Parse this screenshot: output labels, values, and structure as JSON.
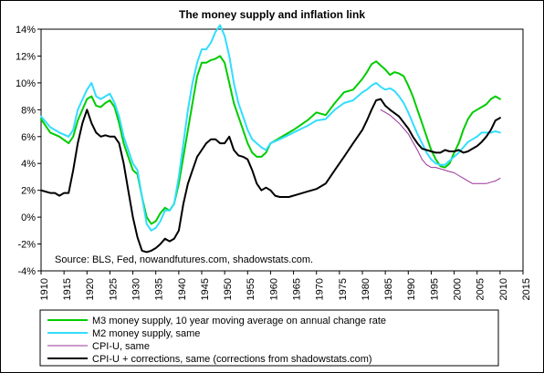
{
  "chart_data": {
    "type": "line",
    "title": "The money supply and inflation link",
    "annotation": "Source: BLS, Fed, nowandfutures.com, shadowstats.com.",
    "xlim": [
      1910,
      2015
    ],
    "ylim": [
      -4,
      14
    ],
    "x_ticks": [
      1910,
      1915,
      1920,
      1925,
      1930,
      1935,
      1940,
      1945,
      1950,
      1955,
      1960,
      1965,
      1970,
      1975,
      1980,
      1985,
      1990,
      1995,
      2000,
      2005,
      2010,
      2015
    ],
    "y_ticks": [
      -4,
      -2,
      0,
      2,
      4,
      6,
      8,
      10,
      12,
      14
    ],
    "y_tick_labels": [
      "-4%",
      "-2%",
      "0%",
      "2%",
      "4%",
      "6%",
      "8%",
      "10%",
      "12%",
      "14%"
    ],
    "grid": false,
    "legend_position": "bottom",
    "series": [
      {
        "name": "M3 money supply, 10 year moving average on annual change rate",
        "color": "#00cc00",
        "points": [
          [
            1910,
            7.3
          ],
          [
            1912,
            6.3
          ],
          [
            1914,
            6.0
          ],
          [
            1916,
            5.5
          ],
          [
            1917,
            6.0
          ],
          [
            1918,
            7.2
          ],
          [
            1920,
            8.8
          ],
          [
            1921,
            9.0
          ],
          [
            1922,
            8.3
          ],
          [
            1923,
            8.2
          ],
          [
            1924,
            8.5
          ],
          [
            1925,
            8.7
          ],
          [
            1926,
            8.2
          ],
          [
            1927,
            7.0
          ],
          [
            1928,
            5.5
          ],
          [
            1929,
            4.5
          ],
          [
            1930,
            3.5
          ],
          [
            1931,
            3.2
          ],
          [
            1932,
            1.5
          ],
          [
            1933,
            0.0
          ],
          [
            1934,
            -0.5
          ],
          [
            1935,
            -0.3
          ],
          [
            1936,
            0.3
          ],
          [
            1937,
            0.7
          ],
          [
            1938,
            0.5
          ],
          [
            1939,
            1.0
          ],
          [
            1940,
            2.5
          ],
          [
            1941,
            4.5
          ],
          [
            1942,
            6.5
          ],
          [
            1943,
            8.5
          ],
          [
            1944,
            10.5
          ],
          [
            1945,
            11.5
          ],
          [
            1946,
            11.5
          ],
          [
            1947,
            11.7
          ],
          [
            1948,
            11.8
          ],
          [
            1949,
            12.0
          ],
          [
            1950,
            11.5
          ],
          [
            1951,
            10.0
          ],
          [
            1952,
            8.5
          ],
          [
            1953,
            7.5
          ],
          [
            1954,
            6.5
          ],
          [
            1955,
            5.5
          ],
          [
            1956,
            4.8
          ],
          [
            1957,
            4.5
          ],
          [
            1958,
            4.5
          ],
          [
            1959,
            4.8
          ],
          [
            1960,
            5.5
          ],
          [
            1962,
            5.9
          ],
          [
            1965,
            6.5
          ],
          [
            1968,
            7.2
          ],
          [
            1970,
            7.8
          ],
          [
            1972,
            7.6
          ],
          [
            1974,
            8.5
          ],
          [
            1976,
            9.3
          ],
          [
            1978,
            9.5
          ],
          [
            1980,
            10.3
          ],
          [
            1981,
            10.8
          ],
          [
            1982,
            11.4
          ],
          [
            1983,
            11.6
          ],
          [
            1984,
            11.3
          ],
          [
            1985,
            11.0
          ],
          [
            1986,
            10.6
          ],
          [
            1987,
            10.8
          ],
          [
            1988,
            10.7
          ],
          [
            1989,
            10.5
          ],
          [
            1990,
            9.8
          ],
          [
            1991,
            9.0
          ],
          [
            1992,
            8.0
          ],
          [
            1993,
            7.0
          ],
          [
            1994,
            6.0
          ],
          [
            1995,
            5.0
          ],
          [
            1996,
            4.3
          ],
          [
            1997,
            3.8
          ],
          [
            1998,
            3.7
          ],
          [
            1999,
            4.0
          ],
          [
            2000,
            4.8
          ],
          [
            2001,
            5.5
          ],
          [
            2002,
            6.5
          ],
          [
            2003,
            7.3
          ],
          [
            2004,
            7.8
          ],
          [
            2005,
            8.0
          ],
          [
            2006,
            8.2
          ],
          [
            2007,
            8.4
          ],
          [
            2008,
            8.8
          ],
          [
            2009,
            9.0
          ],
          [
            2010,
            8.8
          ]
        ]
      },
      {
        "name": "M2 money supply, same",
        "color": "#33ddff",
        "points": [
          [
            1910,
            7.5
          ],
          [
            1912,
            6.7
          ],
          [
            1914,
            6.3
          ],
          [
            1916,
            6.0
          ],
          [
            1917,
            6.5
          ],
          [
            1918,
            8.0
          ],
          [
            1920,
            9.5
          ],
          [
            1921,
            10.0
          ],
          [
            1922,
            9.0
          ],
          [
            1923,
            8.8
          ],
          [
            1924,
            9.0
          ],
          [
            1925,
            9.2
          ],
          [
            1926,
            8.5
          ],
          [
            1927,
            7.5
          ],
          [
            1928,
            6.0
          ],
          [
            1929,
            5.0
          ],
          [
            1930,
            4.0
          ],
          [
            1931,
            3.5
          ],
          [
            1932,
            1.5
          ],
          [
            1933,
            -0.5
          ],
          [
            1934,
            -1.0
          ],
          [
            1935,
            -0.8
          ],
          [
            1936,
            -0.3
          ],
          [
            1937,
            0.5
          ],
          [
            1938,
            0.5
          ],
          [
            1939,
            1.0
          ],
          [
            1940,
            3.0
          ],
          [
            1941,
            5.5
          ],
          [
            1942,
            8.0
          ],
          [
            1943,
            10.0
          ],
          [
            1944,
            11.5
          ],
          [
            1945,
            12.5
          ],
          [
            1946,
            12.5
          ],
          [
            1947,
            13.0
          ],
          [
            1948,
            13.8
          ],
          [
            1949,
            14.3
          ],
          [
            1950,
            13.5
          ],
          [
            1951,
            12.0
          ],
          [
            1952,
            10.0
          ],
          [
            1953,
            8.5
          ],
          [
            1954,
            7.5
          ],
          [
            1955,
            6.5
          ],
          [
            1956,
            5.8
          ],
          [
            1957,
            5.5
          ],
          [
            1958,
            5.2
          ],
          [
            1959,
            5.0
          ],
          [
            1960,
            5.5
          ],
          [
            1962,
            5.8
          ],
          [
            1965,
            6.3
          ],
          [
            1968,
            6.8
          ],
          [
            1970,
            7.2
          ],
          [
            1972,
            7.3
          ],
          [
            1974,
            8.0
          ],
          [
            1976,
            8.5
          ],
          [
            1978,
            8.7
          ],
          [
            1980,
            9.3
          ],
          [
            1981,
            9.5
          ],
          [
            1982,
            9.8
          ],
          [
            1983,
            10.0
          ],
          [
            1984,
            9.7
          ],
          [
            1985,
            9.5
          ],
          [
            1986,
            9.6
          ],
          [
            1987,
            9.4
          ],
          [
            1988,
            9.0
          ],
          [
            1989,
            8.5
          ],
          [
            1990,
            7.8
          ],
          [
            1991,
            7.0
          ],
          [
            1992,
            6.2
          ],
          [
            1993,
            5.5
          ],
          [
            1994,
            4.8
          ],
          [
            1995,
            4.3
          ],
          [
            1996,
            4.0
          ],
          [
            1997,
            3.9
          ],
          [
            1998,
            3.9
          ],
          [
            1999,
            4.2
          ],
          [
            2000,
            4.5
          ],
          [
            2001,
            4.8
          ],
          [
            2002,
            5.2
          ],
          [
            2003,
            5.6
          ],
          [
            2004,
            5.8
          ],
          [
            2005,
            6.0
          ],
          [
            2006,
            6.3
          ],
          [
            2007,
            6.3
          ],
          [
            2008,
            6.3
          ],
          [
            2009,
            6.4
          ],
          [
            2010,
            6.3
          ]
        ]
      },
      {
        "name": "CPI-U, same",
        "color": "#993399",
        "points": [
          [
            1984,
            8.0
          ],
          [
            1986,
            7.6
          ],
          [
            1988,
            7.0
          ],
          [
            1990,
            6.2
          ],
          [
            1991,
            5.6
          ],
          [
            1992,
            5.0
          ],
          [
            1993,
            4.3
          ],
          [
            1994,
            3.9
          ],
          [
            1995,
            3.7
          ],
          [
            1996,
            3.7
          ],
          [
            1997,
            3.6
          ],
          [
            1998,
            3.5
          ],
          [
            1999,
            3.4
          ],
          [
            2000,
            3.3
          ],
          [
            2001,
            3.1
          ],
          [
            2002,
            2.9
          ],
          [
            2003,
            2.7
          ],
          [
            2004,
            2.5
          ],
          [
            2005,
            2.5
          ],
          [
            2006,
            2.5
          ],
          [
            2007,
            2.5
          ],
          [
            2008,
            2.6
          ],
          [
            2009,
            2.7
          ],
          [
            2010,
            2.9
          ]
        ]
      },
      {
        "name": "CPI-U + corrections, same (corrections from shadowstats.com)",
        "color": "#000000",
        "points": [
          [
            1910,
            2.0
          ],
          [
            1911,
            1.9
          ],
          [
            1912,
            1.8
          ],
          [
            1913,
            1.8
          ],
          [
            1914,
            1.6
          ],
          [
            1915,
            1.8
          ],
          [
            1916,
            1.8
          ],
          [
            1917,
            3.5
          ],
          [
            1918,
            5.5
          ],
          [
            1919,
            7.0
          ],
          [
            1920,
            8.0
          ],
          [
            1921,
            7.0
          ],
          [
            1922,
            6.3
          ],
          [
            1923,
            6.0
          ],
          [
            1924,
            6.1
          ],
          [
            1925,
            6.0
          ],
          [
            1926,
            6.0
          ],
          [
            1927,
            5.5
          ],
          [
            1928,
            4.0
          ],
          [
            1929,
            2.0
          ],
          [
            1930,
            0.0
          ],
          [
            1931,
            -1.5
          ],
          [
            1932,
            -2.5
          ],
          [
            1933,
            -2.6
          ],
          [
            1934,
            -2.5
          ],
          [
            1935,
            -2.3
          ],
          [
            1936,
            -2.0
          ],
          [
            1937,
            -1.6
          ],
          [
            1938,
            -1.8
          ],
          [
            1939,
            -1.6
          ],
          [
            1940,
            -1.0
          ],
          [
            1941,
            1.0
          ],
          [
            1942,
            2.5
          ],
          [
            1943,
            3.5
          ],
          [
            1944,
            4.5
          ],
          [
            1945,
            5.0
          ],
          [
            1946,
            5.5
          ],
          [
            1947,
            5.8
          ],
          [
            1948,
            5.8
          ],
          [
            1949,
            5.5
          ],
          [
            1950,
            5.5
          ],
          [
            1951,
            6.0
          ],
          [
            1952,
            5.0
          ],
          [
            1953,
            4.6
          ],
          [
            1954,
            4.5
          ],
          [
            1955,
            4.3
          ],
          [
            1956,
            3.5
          ],
          [
            1957,
            2.5
          ],
          [
            1958,
            2.0
          ],
          [
            1959,
            2.2
          ],
          [
            1960,
            2.0
          ],
          [
            1961,
            1.6
          ],
          [
            1962,
            1.5
          ],
          [
            1964,
            1.5
          ],
          [
            1966,
            1.7
          ],
          [
            1968,
            1.9
          ],
          [
            1970,
            2.1
          ],
          [
            1972,
            2.5
          ],
          [
            1974,
            3.5
          ],
          [
            1976,
            4.5
          ],
          [
            1978,
            5.5
          ],
          [
            1980,
            6.5
          ],
          [
            1981,
            7.2
          ],
          [
            1982,
            8.0
          ],
          [
            1983,
            8.7
          ],
          [
            1984,
            8.8
          ],
          [
            1985,
            8.3
          ],
          [
            1986,
            8.0
          ],
          [
            1988,
            7.5
          ],
          [
            1990,
            6.6
          ],
          [
            1991,
            6.0
          ],
          [
            1992,
            5.5
          ],
          [
            1993,
            5.1
          ],
          [
            1994,
            5.0
          ],
          [
            1995,
            4.9
          ],
          [
            1996,
            4.8
          ],
          [
            1997,
            4.8
          ],
          [
            1998,
            5.0
          ],
          [
            1999,
            4.9
          ],
          [
            2000,
            4.9
          ],
          [
            2001,
            5.0
          ],
          [
            2002,
            4.8
          ],
          [
            2003,
            4.9
          ],
          [
            2004,
            5.1
          ],
          [
            2005,
            5.3
          ],
          [
            2006,
            5.6
          ],
          [
            2007,
            6.0
          ],
          [
            2008,
            6.5
          ],
          [
            2009,
            7.2
          ],
          [
            2010,
            7.4
          ]
        ]
      }
    ]
  }
}
